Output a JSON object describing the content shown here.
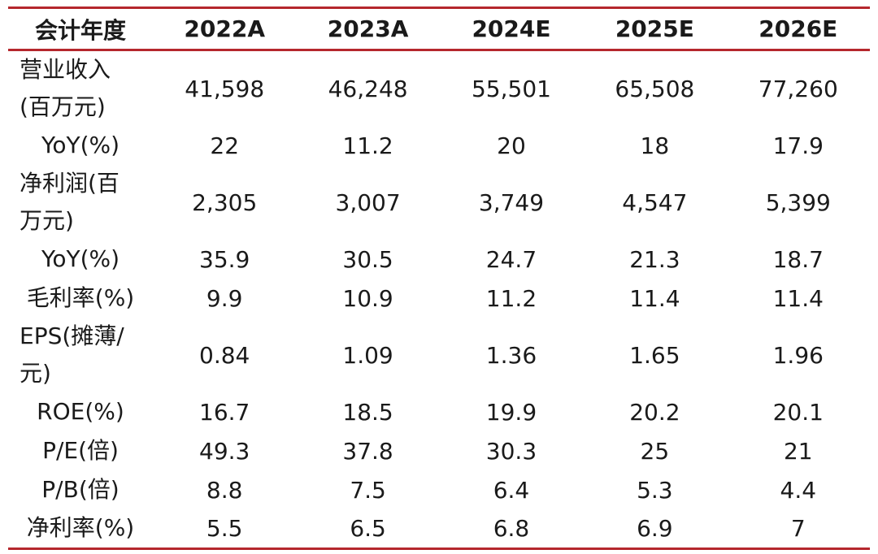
{
  "header": {
    "label": "会计年度",
    "years": [
      "2022A",
      "2023A",
      "2024E",
      "2025E",
      "2026E"
    ]
  },
  "rows": [
    {
      "label": "营业收入(百万元)",
      "values": [
        "41,598",
        "46,248",
        "55,501",
        "65,508",
        "77,260"
      ]
    },
    {
      "label": "YoY(%)",
      "values": [
        "22",
        "11.2",
        "20",
        "18",
        "17.9"
      ]
    },
    {
      "label": "净利润(百万元)",
      "values": [
        "2,305",
        "3,007",
        "3,749",
        "4,547",
        "5,399"
      ]
    },
    {
      "label": "YoY(%)",
      "values": [
        "35.9",
        "30.5",
        "24.7",
        "21.3",
        "18.7"
      ]
    },
    {
      "label": "毛利率(%)",
      "values": [
        "9.9",
        "10.9",
        "11.2",
        "11.4",
        "11.4"
      ]
    },
    {
      "label": "EPS(摊薄/元)",
      "values": [
        "0.84",
        "1.09",
        "1.36",
        "1.65",
        "1.96"
      ]
    },
    {
      "label": "ROE(%)",
      "values": [
        "16.7",
        "18.5",
        "19.9",
        "20.2",
        "20.1"
      ]
    },
    {
      "label": "P/E(倍)",
      "values": [
        "49.3",
        "37.8",
        "30.3",
        "25",
        "21"
      ]
    },
    {
      "label": "P/B(倍)",
      "values": [
        "8.8",
        "7.5",
        "6.4",
        "5.3",
        "4.4"
      ]
    },
    {
      "label": "净利率(%)",
      "values": [
        "5.5",
        "6.5",
        "6.8",
        "6.9",
        "7"
      ]
    }
  ],
  "accent_color": "#b5272d"
}
